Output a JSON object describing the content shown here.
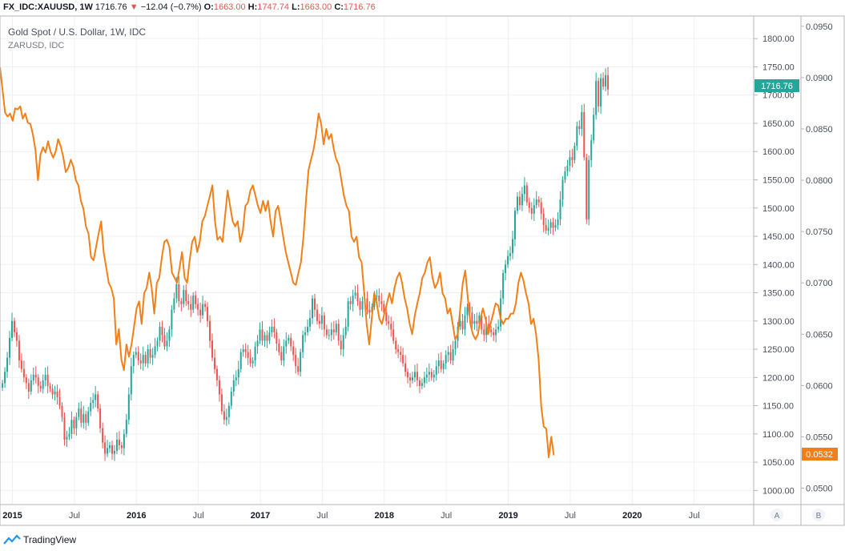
{
  "header": {
    "symbol": "FX_IDC:XAUUSD, 1W",
    "last": "1716.76",
    "arrow": "▼",
    "change": "−12.04 (−0.7%)",
    "o_label": "O:",
    "o_value": "1663.00",
    "h_label": "H:",
    "h_value": "1747.74",
    "l_label": "L:",
    "l_value": "1663.00",
    "c_label": "C:",
    "c_value": "1716.76"
  },
  "footer": {
    "brand": "TradingView"
  },
  "colors": {
    "up": "#26a69a",
    "down": "#ef5350",
    "zar": "#f57f17",
    "grid": "#eef0f3"
  },
  "chart_data": {
    "type": "line",
    "title": "Gold Spot / U.S. Dollar, 1W, IDC",
    "subtitle": "ZARUSD, IDC",
    "x_range": [
      2014.9,
      2020.98
    ],
    "x_ticks": [
      {
        "x": 2015.0,
        "label": "2015",
        "bold": true
      },
      {
        "x": 2015.5,
        "label": "Jul",
        "bold": false
      },
      {
        "x": 2016.0,
        "label": "2016",
        "bold": true
      },
      {
        "x": 2016.5,
        "label": "Jul",
        "bold": false
      },
      {
        "x": 2017.0,
        "label": "2017",
        "bold": true
      },
      {
        "x": 2017.5,
        "label": "Jul",
        "bold": false
      },
      {
        "x": 2018.0,
        "label": "2018",
        "bold": true
      },
      {
        "x": 2018.5,
        "label": "Jul",
        "bold": false
      },
      {
        "x": 2019.0,
        "label": "2019",
        "bold": true
      },
      {
        "x": 2019.5,
        "label": "Jul",
        "bold": false
      },
      {
        "x": 2020.0,
        "label": "2020",
        "bold": true
      },
      {
        "x": 2020.5,
        "label": "Jul",
        "bold": false
      }
    ],
    "left_axis_label": "A",
    "right_axis_label": "B",
    "gold_axis": {
      "range": [
        975,
        1840
      ],
      "ticks": [
        "1000.00",
        "1050.00",
        "1100.00",
        "1150.00",
        "1200.00",
        "1250.00",
        "1300.00",
        "1350.00",
        "1400.00",
        "1450.00",
        "1500.00",
        "1550.00",
        "1600.00",
        "1650.00",
        "1700.00",
        "1750.00",
        "1800.00"
      ],
      "last_label": "1716.76"
    },
    "zar_axis": {
      "range": [
        0.0484,
        0.096
      ],
      "ticks": [
        "0.0500",
        "0.0550",
        "0.0600",
        "0.0650",
        "0.0700",
        "0.0750",
        "0.0800",
        "0.0850",
        "0.0900",
        "0.0950"
      ],
      "last_label": "0.0532"
    },
    "series": [
      {
        "name": "Gold Spot / U.S. Dollar (weekly close)",
        "style": "candles",
        "start": 2014.92,
        "step": 0.01923,
        "values": [
          1190,
          1210,
          1235,
          1270,
          1300,
          1280,
          1265,
          1230,
          1215,
          1200,
          1190,
          1175,
          1195,
          1205,
          1200,
          1185,
          1180,
          1195,
          1205,
          1185,
          1180,
          1170,
          1175,
          1165,
          1150,
          1130,
          1090,
          1095,
          1100,
          1125,
          1110,
          1130,
          1145,
          1120,
          1135,
          1120,
          1140,
          1155,
          1160,
          1170,
          1145,
          1110,
          1085,
          1065,
          1075,
          1080,
          1065,
          1070,
          1090,
          1080,
          1075,
          1100,
          1125,
          1170,
          1220,
          1240,
          1245,
          1230,
          1225,
          1240,
          1225,
          1250,
          1235,
          1240,
          1255,
          1265,
          1290,
          1275,
          1255,
          1265,
          1285,
          1320,
          1340,
          1365,
          1335,
          1330,
          1355,
          1335,
          1330,
          1320,
          1345,
          1330,
          1320,
          1310,
          1330,
          1325,
          1300,
          1265,
          1235,
          1215,
          1195,
          1170,
          1140,
          1125,
          1130,
          1150,
          1175,
          1195,
          1200,
          1215,
          1245,
          1250,
          1245,
          1235,
          1225,
          1230,
          1255,
          1265,
          1285,
          1265,
          1275,
          1265,
          1280,
          1290,
          1280,
          1260,
          1245,
          1230,
          1255,
          1265,
          1270,
          1255,
          1240,
          1220,
          1210,
          1245,
          1275,
          1280,
          1290,
          1305,
          1340,
          1320,
          1300,
          1295,
          1310,
          1285,
          1275,
          1275,
          1285,
          1280,
          1295,
          1265,
          1250,
          1275,
          1290,
          1335,
          1330,
          1345,
          1350,
          1335,
          1320,
          1335,
          1340,
          1320,
          1315,
          1325,
          1345,
          1345,
          1335,
          1330,
          1315,
          1300,
          1295,
          1285,
          1265,
          1250,
          1245,
          1240,
          1225,
          1210,
          1200,
          1195,
          1200,
          1210,
          1195,
          1185,
          1190,
          1200,
          1205,
          1210,
          1200,
          1205,
          1220,
          1230,
          1215,
          1225,
          1240,
          1245,
          1230,
          1250,
          1265,
          1290,
          1300,
          1285,
          1310,
          1325,
          1315,
          1295,
          1300,
          1295,
          1310,
          1285,
          1275,
          1295,
          1285,
          1280,
          1275,
          1285,
          1290,
          1340,
          1385,
          1400,
          1415,
          1420,
          1445,
          1495,
          1520,
          1505,
          1525,
          1540,
          1510,
          1500,
          1490,
          1505,
          1515,
          1510,
          1490,
          1470,
          1460,
          1465,
          1475,
          1465,
          1470,
          1480,
          1515,
          1550,
          1565,
          1575,
          1590,
          1585,
          1610,
          1645,
          1640,
          1670,
          1590,
          1480,
          1585,
          1620,
          1665,
          1725,
          1680,
          1730,
          1715,
          1735,
          1710
        ]
      },
      {
        "name": "ZARUSD",
        "style": "line",
        "start": 2014.9,
        "step": 0.0204,
        "values": [
          0.091,
          0.0888,
          0.0866,
          0.0862,
          0.0865,
          0.0858,
          0.087,
          0.0869,
          0.0872,
          0.086,
          0.0865,
          0.0856,
          0.0855,
          0.0845,
          0.083,
          0.08,
          0.0825,
          0.0832,
          0.0827,
          0.0838,
          0.0828,
          0.0822,
          0.0828,
          0.084,
          0.0833,
          0.0823,
          0.0808,
          0.0812,
          0.082,
          0.0813,
          0.08,
          0.0795,
          0.078,
          0.0772,
          0.0755,
          0.0748,
          0.0725,
          0.0722,
          0.0735,
          0.0748,
          0.076,
          0.073,
          0.0715,
          0.07,
          0.0695,
          0.0685,
          0.064,
          0.0655,
          0.0625,
          0.0615,
          0.064,
          0.0628,
          0.064,
          0.0657,
          0.0675,
          0.0682,
          0.066,
          0.069,
          0.0695,
          0.071,
          0.0695,
          0.067,
          0.07,
          0.0705,
          0.0725,
          0.074,
          0.0742,
          0.0735,
          0.071,
          0.0705,
          0.07,
          0.0715,
          0.073,
          0.0705,
          0.07,
          0.0722,
          0.074,
          0.0745,
          0.073,
          0.074,
          0.076,
          0.0765,
          0.0775,
          0.0785,
          0.0795,
          0.076,
          0.0742,
          0.0745,
          0.074,
          0.0765,
          0.079,
          0.0775,
          0.076,
          0.0755,
          0.076,
          0.074,
          0.075,
          0.0775,
          0.0778,
          0.079,
          0.0795,
          0.0785,
          0.0775,
          0.0768,
          0.078,
          0.077,
          0.078,
          0.076,
          0.0745,
          0.077,
          0.0775,
          0.076,
          0.0745,
          0.073,
          0.072,
          0.071,
          0.07,
          0.0698,
          0.071,
          0.072,
          0.0745,
          0.078,
          0.081,
          0.082,
          0.083,
          0.0845,
          0.0865,
          0.0855,
          0.0835,
          0.085,
          0.084,
          0.0845,
          0.083,
          0.082,
          0.0815,
          0.08,
          0.0785,
          0.0775,
          0.077,
          0.0745,
          0.074,
          0.0745,
          0.0725,
          0.072,
          0.069,
          0.066,
          0.064,
          0.0665,
          0.069,
          0.068,
          0.0665,
          0.066,
          0.067,
          0.068,
          0.069,
          0.068,
          0.0695,
          0.0705,
          0.071,
          0.07,
          0.0685,
          0.0675,
          0.066,
          0.065,
          0.0668,
          0.068,
          0.069,
          0.0705,
          0.071,
          0.072,
          0.0725,
          0.0705,
          0.0695,
          0.07,
          0.071,
          0.069,
          0.0685,
          0.067,
          0.0675,
          0.066,
          0.0645,
          0.065,
          0.0675,
          0.07,
          0.0712,
          0.0685,
          0.066,
          0.065,
          0.0645,
          0.065,
          0.0665,
          0.0675,
          0.0665,
          0.065,
          0.066,
          0.067,
          0.068,
          0.0678,
          0.0665,
          0.066,
          0.0665,
          0.0665,
          0.067,
          0.067,
          0.068,
          0.07,
          0.071,
          0.0702,
          0.069,
          0.068,
          0.066,
          0.0665,
          0.065,
          0.0625,
          0.058,
          0.056,
          0.0558,
          0.053,
          0.055,
          0.0532
        ]
      }
    ]
  }
}
